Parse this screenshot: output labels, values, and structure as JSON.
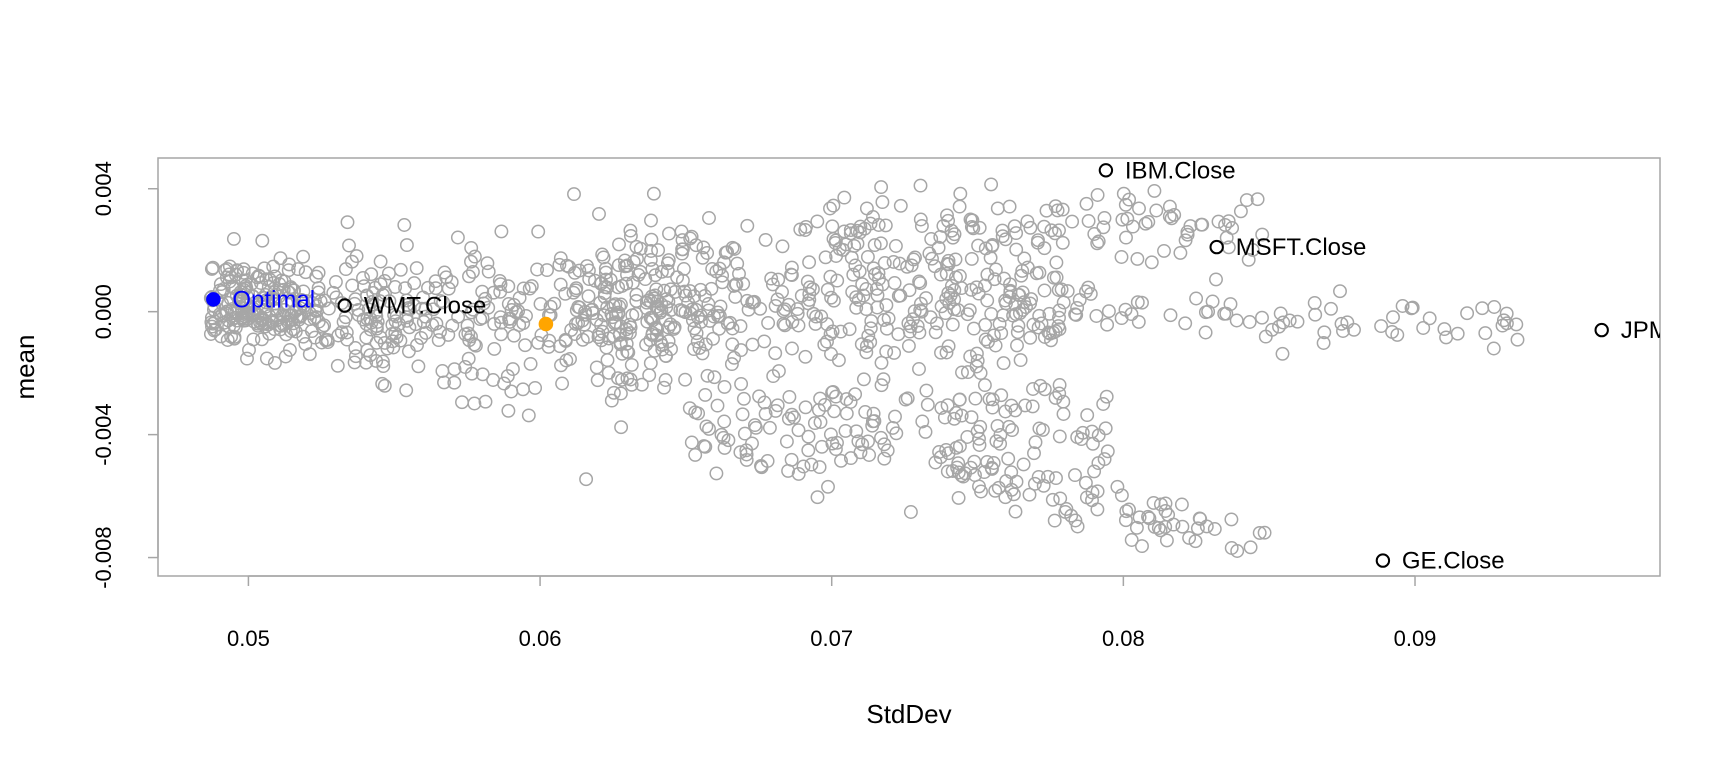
{
  "chart_data": {
    "type": "scatter",
    "title": "",
    "xlabel": "StdDev",
    "ylabel": "mean",
    "xlim": [
      0.0469,
      0.0984
    ],
    "ylim": [
      -0.0086,
      0.005
    ],
    "x_ticks": [
      0.05,
      0.06,
      0.07,
      0.08,
      0.09
    ],
    "x_tick_labels": [
      "0.05",
      "0.06",
      "0.07",
      "0.08",
      "0.09"
    ],
    "y_ticks": [
      0.004,
      0.0,
      -0.004,
      -0.008
    ],
    "y_tick_labels": [
      "0.004",
      "0.000",
      "-0.004",
      "-0.008"
    ],
    "grid": false,
    "colors": {
      "random_portfolios": "#a6a6a6",
      "assets": "#000000",
      "optimal": "#0000ff",
      "highlight": "#ffa500",
      "frame": "#a6a6a6"
    },
    "assets": [
      {
        "label": "IBM.Close",
        "x": 0.0794,
        "y": 0.0046
      },
      {
        "label": "MSFT.Close",
        "x": 0.0832,
        "y": 0.0021
      },
      {
        "label": "WMT.Close",
        "x": 0.0533,
        "y": 0.0002
      },
      {
        "label": "JPM.Close",
        "x": 0.0964,
        "y": -0.0006
      },
      {
        "label": "GE.Close",
        "x": 0.0889,
        "y": -0.0081
      }
    ],
    "optimal": {
      "label": "Optimal",
      "x": 0.0488,
      "y": 0.0004
    },
    "highlight_point": {
      "x": 0.0602,
      "y": -0.0004
    },
    "random_portfolios": {
      "count": 1400,
      "x_range": [
        0.0487,
        0.0945
      ],
      "y_range": [
        -0.0078,
        0.0043
      ]
    }
  }
}
